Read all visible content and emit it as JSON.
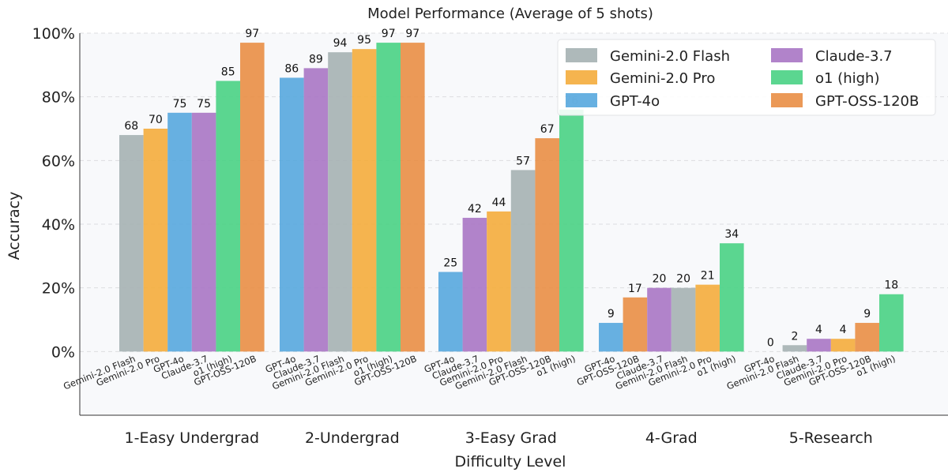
{
  "chart_data": {
    "type": "bar",
    "title": "Model Performance (Average of 5 shots)",
    "xlabel": "Difficulty Level",
    "ylabel": "Accuracy",
    "ylim": [
      -20,
      100
    ],
    "yticks": [
      0,
      20,
      40,
      60,
      80,
      100
    ],
    "ytick_labels": [
      "0%",
      "20%",
      "40%",
      "60%",
      "80%",
      "100%"
    ],
    "grid": true,
    "legend_position": "top-right",
    "legend_order": [
      "Gemini-2.0 Flash",
      "Gemini-2.0 Pro",
      "GPT-4o",
      "Claude-3.7",
      "o1 (high)",
      "GPT-OSS-120B"
    ],
    "colors": {
      "Gemini-2.0 Flash": "#a5b1b2",
      "Gemini-2.0 Pro": "#f4ac3c",
      "GPT-4o": "#56a7de",
      "Claude-3.7": "#a875c4",
      "o1 (high)": "#49d184",
      "GPT-OSS-120B": "#e98e45"
    },
    "groups": [
      {
        "category": "1-Easy Undergrad",
        "bars": [
          {
            "model": "Gemini-2.0 Flash",
            "value": 68
          },
          {
            "model": "Gemini-2.0 Pro",
            "value": 70
          },
          {
            "model": "GPT-4o",
            "value": 75
          },
          {
            "model": "Claude-3.7",
            "value": 75
          },
          {
            "model": "o1 (high)",
            "value": 85
          },
          {
            "model": "GPT-OSS-120B",
            "value": 97
          }
        ]
      },
      {
        "category": "2-Undergrad",
        "bars": [
          {
            "model": "GPT-4o",
            "value": 86
          },
          {
            "model": "Claude-3.7",
            "value": 89
          },
          {
            "model": "Gemini-2.0 Flash",
            "value": 94
          },
          {
            "model": "Gemini-2.0 Pro",
            "value": 95
          },
          {
            "model": "o1 (high)",
            "value": 97
          },
          {
            "model": "GPT-OSS-120B",
            "value": 97
          }
        ]
      },
      {
        "category": "3-Easy Grad",
        "bars": [
          {
            "model": "GPT-4o",
            "value": 25
          },
          {
            "model": "Claude-3.7",
            "value": 42
          },
          {
            "model": "Gemini-2.0 Pro",
            "value": 44
          },
          {
            "model": "Gemini-2.0 Flash",
            "value": 57
          },
          {
            "model": "GPT-OSS-120B",
            "value": 67
          },
          {
            "model": "o1 (high)",
            "value": 76
          }
        ]
      },
      {
        "category": "4-Grad",
        "bars": [
          {
            "model": "GPT-4o",
            "value": 9
          },
          {
            "model": "GPT-OSS-120B",
            "value": 17
          },
          {
            "model": "Claude-3.7",
            "value": 20
          },
          {
            "model": "Gemini-2.0 Flash",
            "value": 20
          },
          {
            "model": "Gemini-2.0 Pro",
            "value": 21
          },
          {
            "model": "o1 (high)",
            "value": 34
          }
        ]
      },
      {
        "category": "5-Research",
        "bars": [
          {
            "model": "GPT-4o",
            "value": 0
          },
          {
            "model": "Gemini-2.0 Flash",
            "value": 2
          },
          {
            "model": "Claude-3.7",
            "value": 4
          },
          {
            "model": "Gemini-2.0 Pro",
            "value": 4
          },
          {
            "model": "GPT-OSS-120B",
            "value": 9
          },
          {
            "model": "o1 (high)",
            "value": 18
          }
        ]
      }
    ]
  }
}
